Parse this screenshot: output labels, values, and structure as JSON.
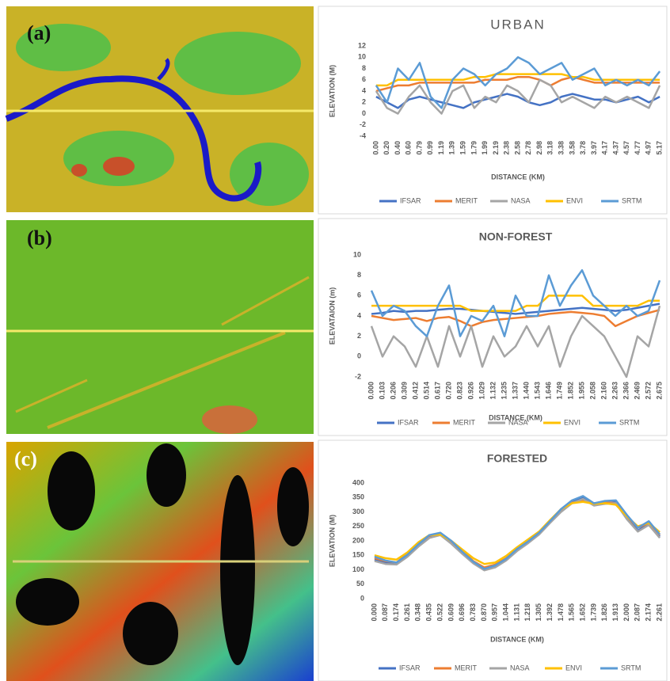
{
  "panels": [
    {
      "label": "(a)"
    },
    {
      "label": "(b)"
    },
    {
      "label": "(c)"
    }
  ],
  "chart_data": [
    {
      "type": "line",
      "title": "URBAN",
      "x_label": "DISTANCE (KM)",
      "y_label": "ELEVATION (M)",
      "categories": [
        "0.00",
        "0.20",
        "0.40",
        "0.60",
        "0.79",
        "0.99",
        "1.19",
        "1.39",
        "1.59",
        "1.79",
        "1.99",
        "2.19",
        "2.38",
        "2.58",
        "2.78",
        "2.98",
        "3.18",
        "3.38",
        "3.58",
        "3.78",
        "3.97",
        "4.17",
        "4.37",
        "4.57",
        "4.77",
        "4.97",
        "5.17"
      ],
      "ylim": [
        -4,
        12
      ],
      "yticks": [
        -4,
        -2,
        0,
        2,
        4,
        6,
        8,
        10,
        12
      ],
      "grid": false,
      "series": [
        {
          "name": "IFSAR",
          "color": "#4472c4",
          "values": [
            3,
            2,
            1,
            2.5,
            3,
            2.5,
            2,
            1.5,
            1,
            2,
            2.5,
            3,
            3.5,
            3,
            2,
            1.5,
            2,
            3,
            3.5,
            3,
            2.5,
            2.5,
            2,
            2.5,
            3,
            2,
            3
          ]
        },
        {
          "name": "MERIT",
          "color": "#ed7d31",
          "values": [
            4,
            4.5,
            5,
            5,
            5.5,
            5.5,
            5.5,
            5.5,
            5.5,
            5.5,
            6,
            6,
            6,
            6.5,
            6.5,
            6,
            5,
            6,
            6.5,
            6,
            5.5,
            5.5,
            5.5,
            5.5,
            5.5,
            5.5,
            5.5
          ]
        },
        {
          "name": "NASA",
          "color": "#a5a5a5",
          "values": [
            4,
            1,
            0,
            3,
            5,
            2,
            0,
            4,
            5,
            1,
            3,
            2,
            5,
            4,
            2,
            6,
            5,
            2,
            3,
            2,
            1,
            3,
            2,
            3,
            2,
            1,
            5
          ]
        },
        {
          "name": "ENVI",
          "color": "#ffc000",
          "values": [
            5,
            5,
            6,
            6,
            6,
            6,
            6,
            6,
            6,
            6.5,
            6.5,
            7,
            7,
            7,
            7,
            7,
            7,
            7,
            6.5,
            6.5,
            6,
            6,
            6,
            6,
            6,
            6,
            6
          ]
        },
        {
          "name": "SRTM",
          "color": "#5b9bd5",
          "values": [
            5,
            2,
            8,
            6,
            9,
            3,
            1,
            6,
            8,
            7,
            5,
            7,
            8,
            10,
            9,
            7,
            8,
            9,
            6,
            7,
            8,
            5,
            6,
            5,
            6,
            5,
            7.5
          ]
        }
      ]
    },
    {
      "type": "line",
      "title": "NON-FOREST",
      "x_label": "DISTANCE (KM)",
      "y_label": "ELEVATAION (m)",
      "categories": [
        "0.000",
        "0.103",
        "0.206",
        "0.309",
        "0.412",
        "0.514",
        "0.617",
        "0.720",
        "0.823",
        "0.926",
        "1.029",
        "1.132",
        "1.235",
        "1.337",
        "1.440",
        "1.543",
        "1.646",
        "1.749",
        "1.852",
        "1.955",
        "2.058",
        "2.160",
        "2.263",
        "2.366",
        "2.469",
        "2.572",
        "2.675"
      ],
      "ylim": [
        -2,
        10
      ],
      "yticks": [
        -2,
        0,
        2,
        4,
        6,
        8,
        10
      ],
      "grid": false,
      "series": [
        {
          "name": "IFSAR",
          "color": "#4472c4",
          "values": [
            4.2,
            4.3,
            4.5,
            4.4,
            4.5,
            4.5,
            4.6,
            4.7,
            4.7,
            4.6,
            4.5,
            4.4,
            4.3,
            4.2,
            4.3,
            4.4,
            4.5,
            4.6,
            4.7,
            4.8,
            4.7,
            4.6,
            4.5,
            4.6,
            4.8,
            5,
            5.2
          ]
        },
        {
          "name": "MERIT",
          "color": "#ed7d31",
          "values": [
            4,
            3.8,
            3.6,
            3.7,
            3.8,
            3.5,
            3.8,
            3.9,
            3.5,
            3,
            3.4,
            3.6,
            3.7,
            3.8,
            3.9,
            4,
            4.2,
            4.3,
            4.4,
            4.3,
            4.2,
            4,
            3,
            3.5,
            4,
            4.3,
            4.6
          ]
        },
        {
          "name": "NASA",
          "color": "#a5a5a5",
          "values": [
            3,
            0,
            2,
            1,
            -1,
            2,
            -1,
            3,
            0,
            3,
            -1,
            2,
            0,
            1,
            3,
            1,
            3,
            -1,
            2,
            4,
            3,
            2,
            0,
            -2,
            2,
            1,
            5
          ]
        },
        {
          "name": "ENVI",
          "color": "#ffc000",
          "values": [
            5,
            5,
            5,
            5,
            5,
            5,
            5,
            5,
            5,
            4.5,
            4.5,
            4.5,
            4.5,
            4.5,
            5,
            5,
            6,
            6,
            6,
            6,
            5,
            5,
            5,
            5,
            5,
            5.5,
            5.5
          ]
        },
        {
          "name": "SRTM",
          "color": "#5b9bd5",
          "values": [
            6.5,
            4,
            5,
            4.5,
            3,
            2,
            5,
            7,
            2,
            4,
            3.5,
            5,
            2,
            6,
            4,
            4,
            8,
            5,
            7,
            8.5,
            6,
            5,
            4,
            5,
            4,
            4.5,
            7.5
          ]
        }
      ]
    },
    {
      "type": "line",
      "title": "FORESTED",
      "x_label": "DISTANCE (KM)",
      "y_label": "ELEVATION (M)",
      "categories": [
        "0.000",
        "0.087",
        "0.174",
        "0.261",
        "0.348",
        "0.435",
        "0.522",
        "0.609",
        "0.696",
        "0.783",
        "0.870",
        "0.957",
        "1.044",
        "1.131",
        "1.218",
        "1.305",
        "1.392",
        "1.478",
        "1.565",
        "1.652",
        "1.739",
        "1.826",
        "1.913",
        "2.000",
        "2.087",
        "2.174",
        "2.261"
      ],
      "ylim": [
        0,
        400
      ],
      "yticks": [
        0,
        50,
        100,
        150,
        200,
        250,
        300,
        350,
        400
      ],
      "grid": false,
      "series": [
        {
          "name": "IFSAR",
          "color": "#4472c4",
          "values": [
            135,
            125,
            120,
            150,
            185,
            215,
            225,
            195,
            160,
            125,
            100,
            110,
            135,
            170,
            195,
            225,
            265,
            305,
            335,
            350,
            325,
            330,
            335,
            280,
            235,
            260,
            215
          ]
        },
        {
          "name": "MERIT",
          "color": "#ed7d31",
          "values": [
            140,
            130,
            125,
            155,
            190,
            218,
            222,
            198,
            165,
            130,
            108,
            118,
            140,
            172,
            200,
            230,
            270,
            308,
            332,
            340,
            330,
            335,
            330,
            285,
            245,
            262,
            220
          ]
        },
        {
          "name": "NASA",
          "color": "#a5a5a5",
          "values": [
            130,
            120,
            118,
            145,
            180,
            210,
            220,
            190,
            155,
            122,
            98,
            108,
            132,
            165,
            192,
            222,
            262,
            300,
            330,
            345,
            322,
            328,
            330,
            275,
            232,
            255,
            210
          ]
        },
        {
          "name": "ENVI",
          "color": "#ffc000",
          "values": [
            150,
            140,
            135,
            160,
            195,
            220,
            222,
            200,
            170,
            140,
            120,
            125,
            148,
            178,
            205,
            232,
            272,
            310,
            330,
            335,
            328,
            330,
            325,
            285,
            250,
            262,
            230
          ]
        },
        {
          "name": "SRTM",
          "color": "#5b9bd5",
          "values": [
            145,
            132,
            125,
            152,
            188,
            220,
            228,
            200,
            162,
            128,
            103,
            115,
            138,
            172,
            198,
            228,
            268,
            310,
            340,
            355,
            330,
            338,
            340,
            290,
            245,
            268,
            222
          ]
        }
      ]
    }
  ]
}
